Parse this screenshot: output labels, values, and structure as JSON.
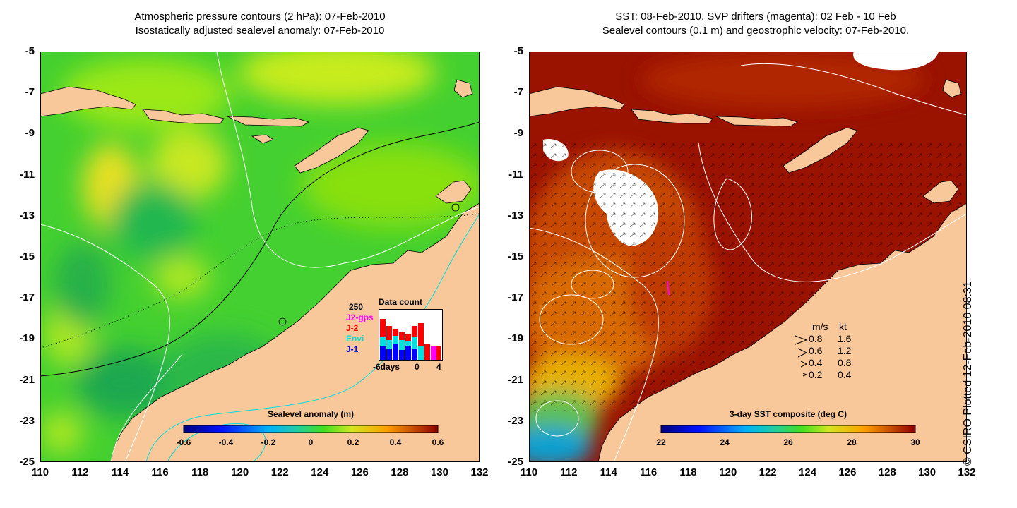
{
  "left_panel": {
    "title_line1": "Atmospheric pressure contours (2 hPa): 07-Feb-2010",
    "title_line2": "Isostatically adjusted sealevel anomaly: 07-Feb-2010",
    "colorbar": {
      "title": "Sealevel anomaly (m)",
      "ticks": [
        "-0.6",
        "-0.4",
        "-0.2",
        "0",
        "0.2",
        "0.4",
        "0.6"
      ],
      "range": [
        -0.6,
        0.6
      ]
    },
    "data_count": {
      "title": "Data count",
      "max_label": "250",
      "series": [
        {
          "name": "J2-gps",
          "color": "#ff00ff"
        },
        {
          "name": "J-2",
          "color": "#ff0000"
        },
        {
          "name": "Envi",
          "color": "#00e0e0"
        },
        {
          "name": "J-1",
          "color": "#0000ff"
        }
      ],
      "x_ticks": [
        "-6days",
        "0",
        "4"
      ]
    }
  },
  "right_panel": {
    "title_line1": "SST: 08-Feb-2010. SVP drifters (magenta): 02 Feb - 10 Feb",
    "title_line2": "Sealevel contours (0.1 m) and geostrophic velocity: 07-Feb-2010.",
    "colorbar": {
      "title": "3-day SST composite (deg C)",
      "ticks": [
        "22",
        "24",
        "26",
        "28",
        "30"
      ],
      "range": [
        22,
        30
      ]
    },
    "velocity_legend": {
      "header_ms": "m/s",
      "header_kt": "kt",
      "rows": [
        {
          "ms": "0.8",
          "kt": "1.6"
        },
        {
          "ms": "0.6",
          "kt": "1.2"
        },
        {
          "ms": "0.4",
          "kt": "0.8"
        },
        {
          "ms": "0.2",
          "kt": "0.4"
        }
      ]
    }
  },
  "axes": {
    "lat_ticks": [
      "-5",
      "-7",
      "-9",
      "-11",
      "-13",
      "-15",
      "-17",
      "-19",
      "-21",
      "-23",
      "-25"
    ],
    "lon_ticks": [
      "110",
      "112",
      "114",
      "116",
      "118",
      "120",
      "122",
      "124",
      "126",
      "128",
      "130",
      "132"
    ],
    "lat_range": [
      -25,
      -5
    ],
    "lon_range": [
      110,
      132
    ]
  },
  "credit": "© CSIRO Plotted 12-Feb-2010 08:31",
  "colors": {
    "land": "#f9c89a",
    "ocean_sla": "#33cc33",
    "ocean_sst": "#9a1200"
  }
}
